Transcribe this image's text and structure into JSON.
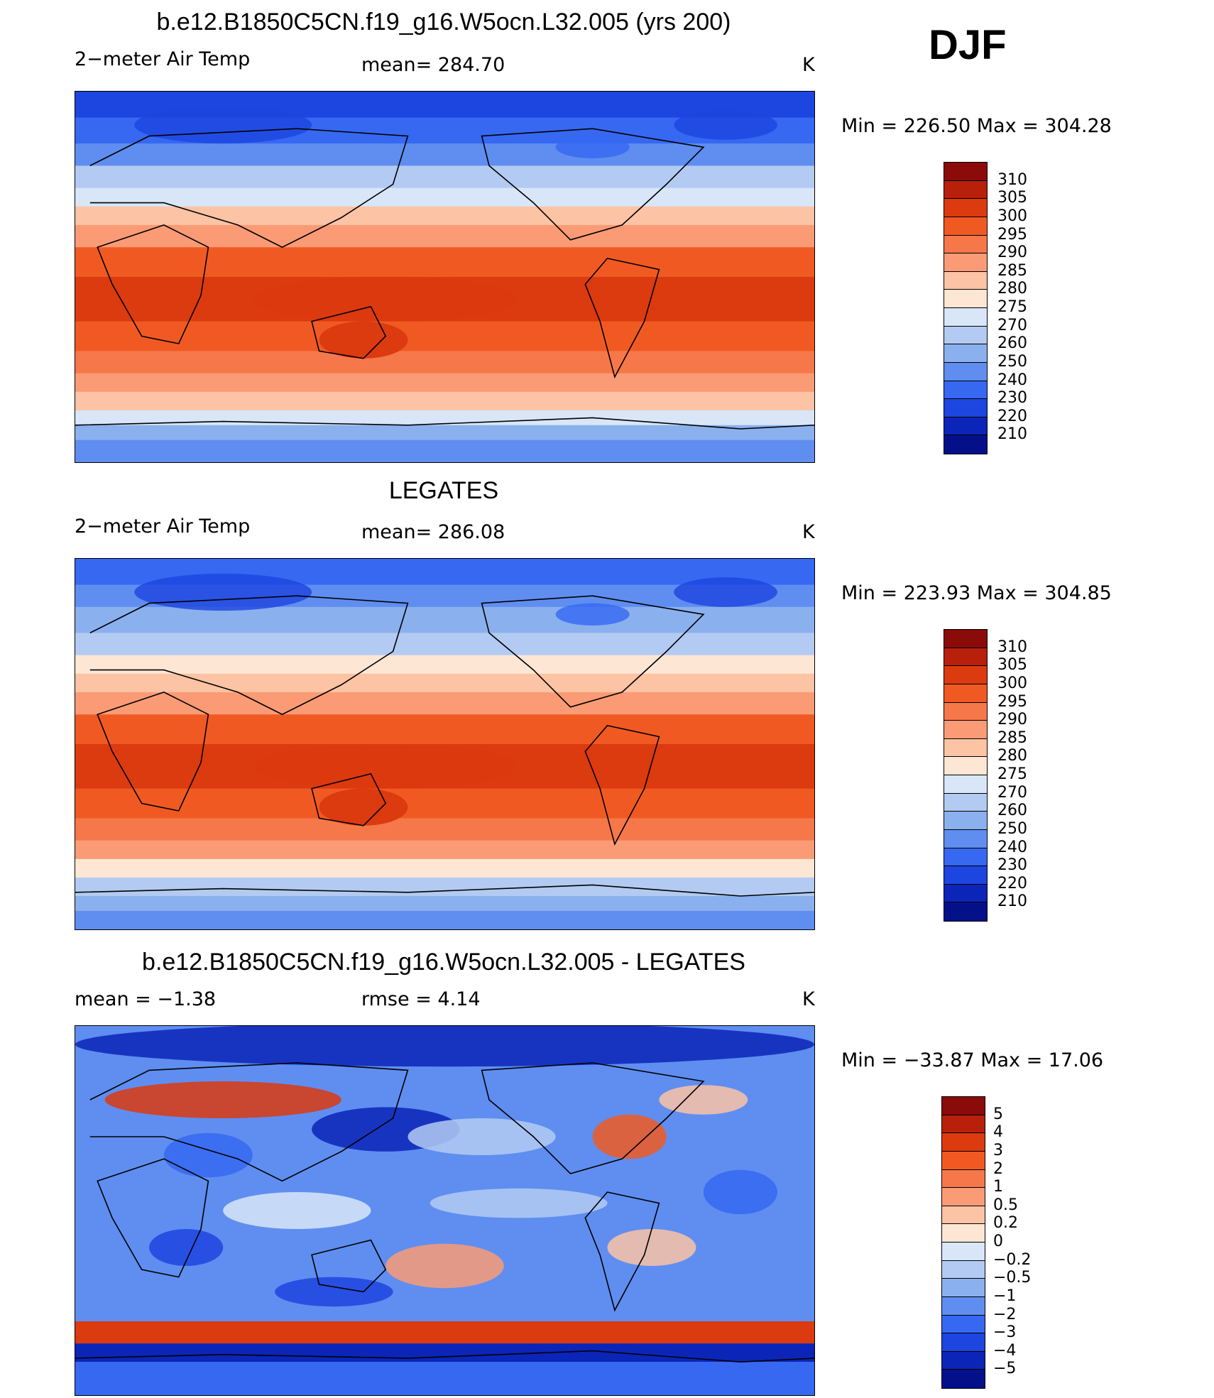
{
  "season": "DJF",
  "panels": [
    {
      "title": "b.e12.B1850C5CN.f19_g16.W5ocn.L32.005 (yrs 200)",
      "left_label": "2−meter Air Temp",
      "mid_label": "mean=  284.70",
      "units": "K",
      "minmax": "Min  =  226.50  Max  =  304.28",
      "pattern": "model"
    },
    {
      "title": "LEGATES",
      "left_label": "2−meter Air Temp",
      "mid_label": "mean=  286.08",
      "units": "K",
      "minmax": "Min  =  223.93  Max  =  304.85",
      "pattern": "obs"
    },
    {
      "title": "b.e12.B1850C5CN.f19_g16.W5ocn.L32.005 - LEGATES",
      "left_label": "mean  =    −1.38",
      "mid_label": "rmse  =      4.14",
      "units": "K",
      "minmax": "Min  =  −33.87  Max  =    17.06",
      "pattern": "diff"
    }
  ],
  "colorbars": {
    "temperature": {
      "labels": [
        "310",
        "305",
        "300",
        "295",
        "290",
        "285",
        "280",
        "275",
        "270",
        "260",
        "250",
        "240",
        "230",
        "220",
        "210"
      ],
      "colors": [
        "#8b0a0a",
        "#b8200c",
        "#dc3a0f",
        "#f05a22",
        "#f6784a",
        "#fa9b76",
        "#fcc3a4",
        "#fde6d4",
        "#d8e6f8",
        "#b3cbf2",
        "#8bb0ee",
        "#5f8ef0",
        "#3668f2",
        "#1d45e0",
        "#0b25b8",
        "#04108a"
      ]
    },
    "difference": {
      "labels": [
        "5",
        "4",
        "3",
        "2",
        "1",
        "0.5",
        "0.2",
        "0",
        "−0.2",
        "−0.5",
        "−1",
        "−2",
        "−3",
        "−4",
        "−5"
      ],
      "colors": [
        "#8b0a0a",
        "#b8200c",
        "#dc3a0f",
        "#f05a22",
        "#f6784a",
        "#fa9b76",
        "#fcc3a4",
        "#fde6d4",
        "#d8e6f8",
        "#b3cbf2",
        "#8bb0ee",
        "#5f8ef0",
        "#3668f2",
        "#1d45e0",
        "#0b25b8",
        "#04108a"
      ]
    }
  }
}
